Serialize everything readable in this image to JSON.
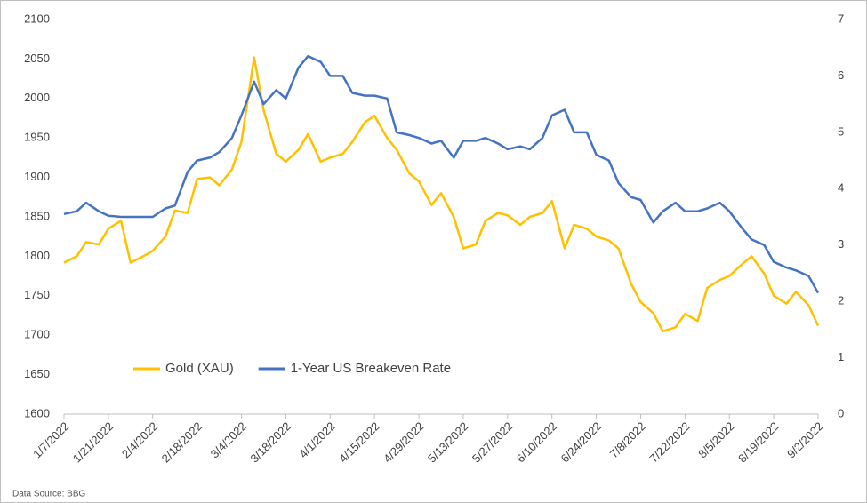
{
  "chart_data": {
    "type": "line",
    "x": [
      "1/7/2022",
      "1/11/2022",
      "1/14/2022",
      "1/18/2022",
      "1/21/2022",
      "1/25/2022",
      "1/28/2022",
      "2/1/2022",
      "2/4/2022",
      "2/8/2022",
      "2/11/2022",
      "2/15/2022",
      "2/18/2022",
      "2/22/2022",
      "2/25/2022",
      "3/1/2022",
      "3/4/2022",
      "3/8/2022",
      "3/11/2022",
      "3/15/2022",
      "3/18/2022",
      "3/22/2022",
      "3/25/2022",
      "3/29/2022",
      "4/1/2022",
      "4/5/2022",
      "4/8/2022",
      "4/12/2022",
      "4/15/2022",
      "4/19/2022",
      "4/22/2022",
      "4/26/2022",
      "4/29/2022",
      "5/3/2022",
      "5/6/2022",
      "5/10/2022",
      "5/13/2022",
      "5/17/2022",
      "5/20/2022",
      "5/24/2022",
      "5/27/2022",
      "5/31/2022",
      "6/3/2022",
      "6/7/2022",
      "6/10/2022",
      "6/14/2022",
      "6/17/2022",
      "6/21/2022",
      "6/24/2022",
      "6/28/2022",
      "7/1/2022",
      "7/5/2022",
      "7/8/2022",
      "7/12/2022",
      "7/15/2022",
      "7/19/2022",
      "7/22/2022",
      "7/26/2022",
      "7/29/2022",
      "8/2/2022",
      "8/5/2022",
      "8/9/2022",
      "8/12/2022",
      "8/16/2022",
      "8/19/2022",
      "8/23/2022",
      "8/26/2022",
      "8/30/2022",
      "9/2/2022"
    ],
    "series": [
      {
        "name": "Gold (XAU)",
        "color": "#ffc000",
        "values": [
          1792,
          1800,
          1818,
          1815,
          1835,
          1845,
          1792,
          1800,
          1807,
          1825,
          1858,
          1855,
          1898,
          1900,
          1890,
          1910,
          1945,
          2052,
          1985,
          1930,
          1920,
          1935,
          1955,
          1920,
          1925,
          1930,
          1945,
          1970,
          1978,
          1950,
          1935,
          1905,
          1895,
          1865,
          1880,
          1850,
          1810,
          1815,
          1845,
          1855,
          1852,
          1840,
          1850,
          1855,
          1870,
          1810,
          1840,
          1835,
          1825,
          1820,
          1810,
          1765,
          1742,
          1728,
          1705,
          1710,
          1727,
          1718,
          1760,
          1770,
          1775,
          1790,
          1800,
          1778,
          1750,
          1740,
          1755,
          1738,
          1712
        ]
      },
      {
        "name": "1-Year US Breakeven Rate",
        "color": "#4472c4",
        "axis": "y2",
        "values": [
          3.55,
          3.6,
          3.75,
          3.6,
          3.52,
          3.5,
          3.5,
          3.5,
          3.5,
          3.65,
          3.7,
          4.3,
          4.5,
          4.55,
          4.65,
          4.9,
          5.3,
          5.9,
          5.5,
          5.75,
          5.6,
          6.15,
          6.35,
          6.25,
          6.0,
          6.0,
          5.7,
          5.65,
          5.65,
          5.6,
          5.0,
          4.95,
          4.9,
          4.8,
          4.85,
          4.55,
          4.85,
          4.85,
          4.9,
          4.8,
          4.7,
          4.75,
          4.7,
          4.9,
          5.3,
          5.4,
          5.0,
          5.0,
          4.6,
          4.5,
          4.1,
          3.85,
          3.8,
          3.4,
          3.6,
          3.75,
          3.6,
          3.6,
          3.65,
          3.75,
          3.6,
          3.3,
          3.1,
          3.0,
          2.7,
          2.6,
          2.55,
          2.45,
          2.15
        ]
      }
    ],
    "xlim": [
      "1/7/2022",
      "9/2/2022"
    ],
    "xticks": [
      "1/7/2022",
      "1/21/2022",
      "2/4/2022",
      "2/18/2022",
      "3/4/2022",
      "3/18/2022",
      "4/1/2022",
      "4/15/2022",
      "4/29/2022",
      "5/13/2022",
      "5/27/2022",
      "6/10/2022",
      "6/24/2022",
      "7/8/2022",
      "7/22/2022",
      "8/5/2022",
      "8/19/2022",
      "9/2/2022"
    ],
    "ylim": [
      1600,
      2100
    ],
    "yticks": [
      1600,
      1650,
      1700,
      1750,
      1800,
      1850,
      1900,
      1950,
      2000,
      2050,
      2100
    ],
    "y2lim": [
      0,
      7
    ],
    "y2ticks": [
      0,
      1,
      2,
      3,
      4,
      5,
      6,
      7
    ],
    "legend": "lower left",
    "source": "Data Source: BBG"
  }
}
